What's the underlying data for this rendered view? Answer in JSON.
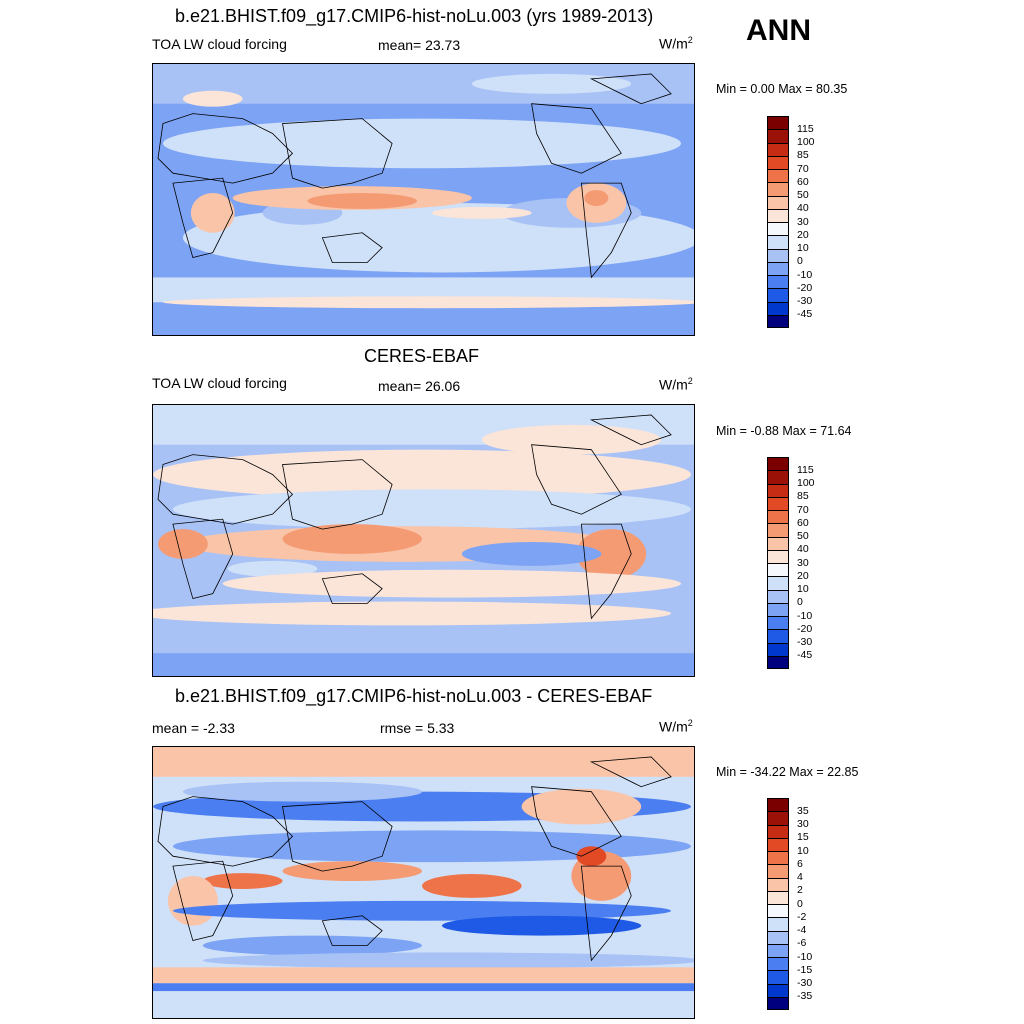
{
  "season": "ANN",
  "colors": {
    "abs_scale": [
      "#00007f",
      "#0020a8",
      "#0037cc",
      "#1e5ae6",
      "#4b7ef0",
      "#7da3f4",
      "#a8c2f6",
      "#cfe0f9",
      "#f5f8fd",
      "#fbe4d8",
      "#f9c4a8",
      "#f49b74",
      "#ef7348",
      "#e24a26",
      "#c62b14",
      "#9b1108",
      "#7a0000"
    ],
    "diff_scale": [
      "#00007f",
      "#0020a8",
      "#0037cc",
      "#1e5ae6",
      "#4b7ef0",
      "#7da3f4",
      "#a8c2f6",
      "#cfe0f9",
      "#f5f8fd",
      "#fbe4d8",
      "#f9c4a8",
      "#f49b74",
      "#ef7348",
      "#e24a26",
      "#c62b14",
      "#9b1108",
      "#7a0000"
    ]
  },
  "panels": [
    {
      "title": "b.e21.BHIST.f09_g17.CMIP6-hist-noLu.003 (yrs 1989-2013)",
      "left_label": "TOA LW cloud forcing",
      "center_label": "mean=  23.73",
      "units": "W/m",
      "units_exp": "2",
      "minmax": "Min =   0.00 Max =  80.35",
      "legend_labels": [
        "115",
        "100",
        "85",
        "70",
        "60",
        "50",
        "40",
        "30",
        "20",
        "10",
        "0",
        "-10",
        "-20",
        "-30",
        "-45"
      ]
    },
    {
      "title": "CERES-EBAF",
      "left_label": "TOA LW cloud forcing",
      "center_label": "mean=  26.06",
      "units": "W/m",
      "units_exp": "2",
      "minmax": "Min =  -0.88 Max =  71.64",
      "legend_labels": [
        "115",
        "100",
        "85",
        "70",
        "60",
        "50",
        "40",
        "30",
        "20",
        "10",
        "0",
        "-10",
        "-20",
        "-30",
        "-45"
      ]
    },
    {
      "title": "b.e21.BHIST.f09_g17.CMIP6-hist-noLu.003 - CERES-EBAF",
      "left_label": "mean =  -2.33",
      "center_label": "rmse =   5.33",
      "units": "W/m",
      "units_exp": "2",
      "minmax": "Min = -34.22 Max =  22.85",
      "legend_labels": [
        "35",
        "30",
        "15",
        "10",
        "6",
        "4",
        "2",
        "0",
        "-2",
        "-4",
        "-6",
        "-10",
        "-15",
        "-30",
        "-35"
      ]
    }
  ]
}
